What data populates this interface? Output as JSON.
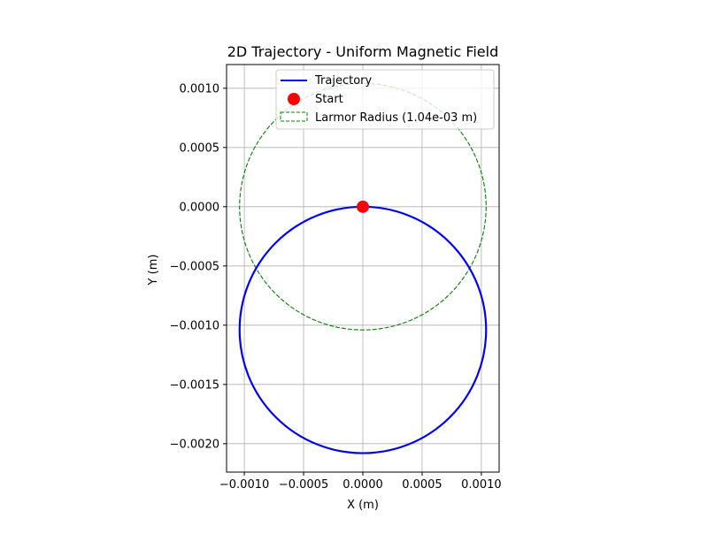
{
  "chart_data": {
    "type": "line",
    "title": "2D Trajectory - Uniform Magnetic Field",
    "xlabel": "X (m)",
    "ylabel": "Y (m)",
    "xlim": [
      -0.00115,
      0.00115
    ],
    "ylim": [
      -0.00224,
      0.0012
    ],
    "grid": true,
    "legend_location": "upper right",
    "xticks": [
      {
        "value": -0.001,
        "label": "−0.0010"
      },
      {
        "value": -0.0005,
        "label": "−0.0005"
      },
      {
        "value": 0.0,
        "label": "0.0000"
      },
      {
        "value": 0.0005,
        "label": "0.0005"
      },
      {
        "value": 0.001,
        "label": "0.0010"
      }
    ],
    "yticks": [
      {
        "value": 0.001,
        "label": "0.0010"
      },
      {
        "value": 0.0005,
        "label": "0.0005"
      },
      {
        "value": 0.0,
        "label": "0.0000"
      },
      {
        "value": -0.0005,
        "label": "−0.0005"
      },
      {
        "value": -0.001,
        "label": "−0.0010"
      },
      {
        "value": -0.0015,
        "label": "−0.0015"
      },
      {
        "value": -0.002,
        "label": "−0.0020"
      }
    ],
    "series": [
      {
        "name": "Trajectory",
        "kind": "circle-line",
        "center": [
          0.0,
          -0.00104
        ],
        "radius": 0.00104,
        "color": "#0000ff",
        "style": "solid"
      },
      {
        "name": "Start",
        "kind": "point",
        "x": 0.0,
        "y": 0.0,
        "color": "#ff0000"
      },
      {
        "name": "Larmor Radius (1.04e-03 m)",
        "kind": "circle-patch",
        "center": [
          0.0,
          0.0
        ],
        "radius": 0.00104,
        "color": "#008000",
        "style": "dashed"
      }
    ]
  }
}
